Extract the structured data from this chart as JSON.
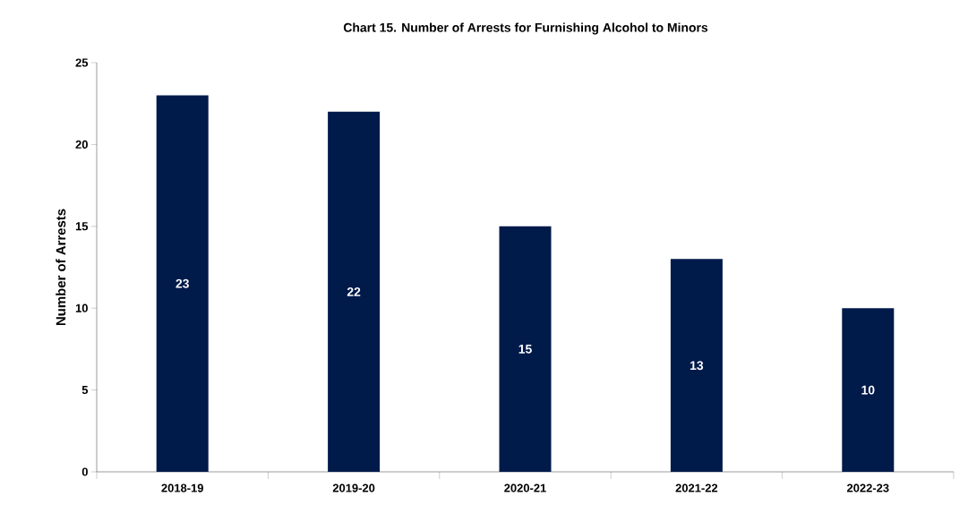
{
  "chart_data": {
    "type": "bar",
    "title": "Chart 15. Number of Arrests for Furnishing Alcohol to Minors",
    "ylabel": "Number of Arrests",
    "categories": [
      "2018-19",
      "2019-20",
      "2020-21",
      "2021-22",
      "2022-23"
    ],
    "values": [
      23,
      22,
      15,
      13,
      10
    ],
    "color": "#001a4a",
    "data_labels": true,
    "ylim": [
      0,
      25
    ],
    "yticks": [
      0,
      5,
      10,
      15,
      20,
      25
    ],
    "grid": false
  }
}
